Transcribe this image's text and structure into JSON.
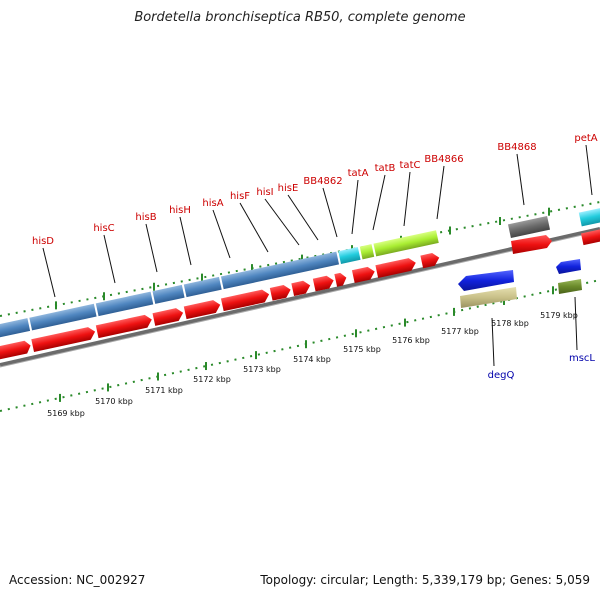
{
  "title": "Bordetella bronchiseptica RB50, complete genome",
  "footer": {
    "accession": "Accession: NC_002927",
    "stats": "Topology: circular; Length: 5,339,179 bp; Genes: 5,059"
  },
  "colors": {
    "cds": "#ee1111",
    "operon_blue": "#4f86c0",
    "tat_green": "#aaee33",
    "cyan": "#33ccdd",
    "degQ_blue": "#1122dd",
    "tan": "#c8c088",
    "olive": "#6a8a2a",
    "grey": "#6a6a6a",
    "label_red": "#cc0000",
    "label_blue": "#0000aa",
    "tick_green": "#2a8a2a"
  },
  "ticks": [
    {
      "label": "5169 kbp",
      "pos": 5169
    },
    {
      "label": "5170 kbp",
      "pos": 5170
    },
    {
      "label": "5171 kbp",
      "pos": 5171
    },
    {
      "label": "5172 kbp",
      "pos": 5172
    },
    {
      "label": "5173 kbp",
      "pos": 5173
    },
    {
      "label": "5174 kbp",
      "pos": 5174
    },
    {
      "label": "5175 kbp",
      "pos": 5175
    },
    {
      "label": "5176 kbp",
      "pos": 5176
    },
    {
      "label": "5177 kbp",
      "pos": 5177
    },
    {
      "label": "5178 kbp",
      "pos": 5178
    },
    {
      "label": "5179 kbp",
      "pos": 5179
    }
  ],
  "upper_labels": [
    {
      "name": "hisD"
    },
    {
      "name": "hisC"
    },
    {
      "name": "hisB"
    },
    {
      "name": "hisH"
    },
    {
      "name": "hisA"
    },
    {
      "name": "hisF"
    },
    {
      "name": "hisI"
    },
    {
      "name": "hisE"
    },
    {
      "name": "BB4862"
    },
    {
      "name": "tatA"
    },
    {
      "name": "tatB"
    },
    {
      "name": "tatC"
    },
    {
      "name": "BB4866"
    },
    {
      "name": "BB4868"
    },
    {
      "name": "petA"
    }
  ],
  "lower_labels": [
    {
      "name": "degQ"
    },
    {
      "name": "mscL"
    }
  ]
}
